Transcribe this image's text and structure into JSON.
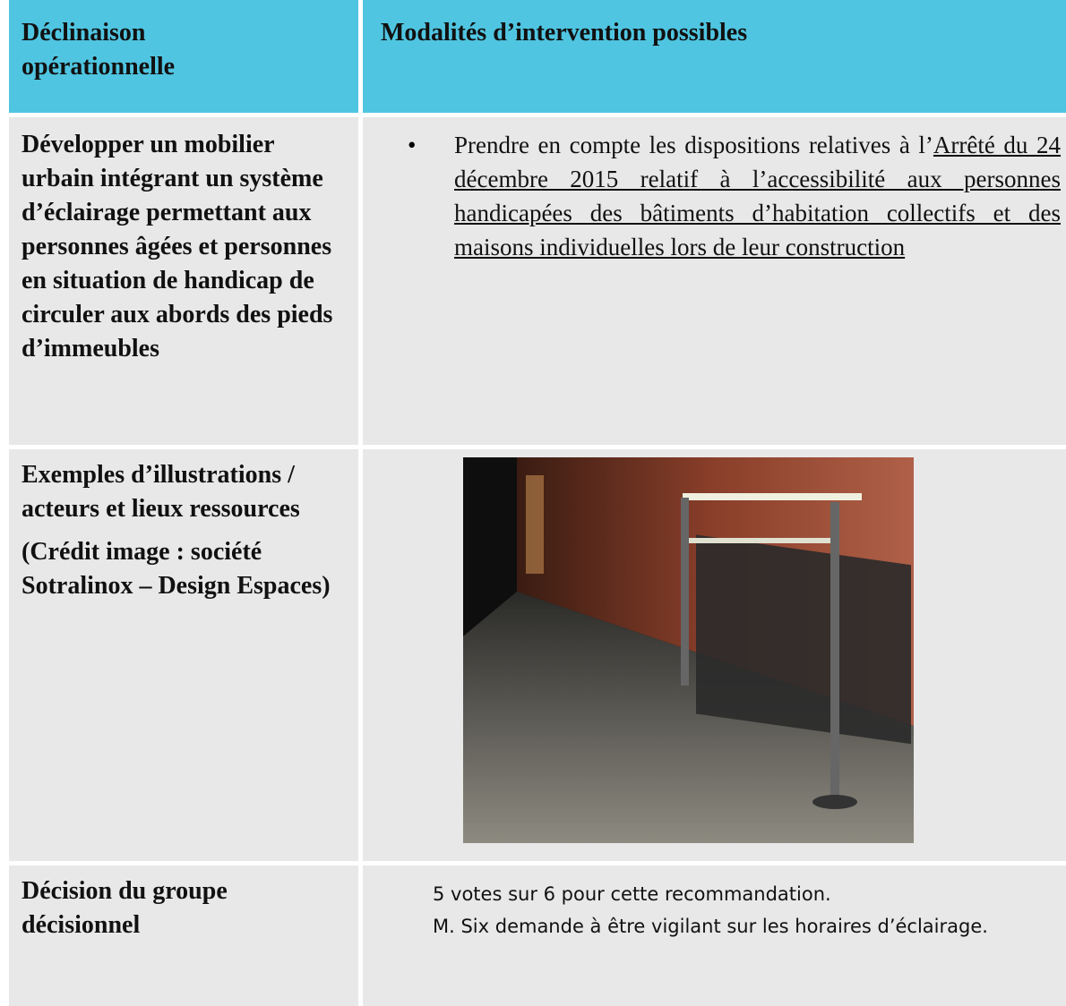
{
  "table": {
    "header": [
      "Déclinaison opérationnelle",
      "Modalités d’intervention possibles"
    ],
    "rows": [
      {
        "label": "Développer un mobilier urbain intégrant un système d’éclairage permettant aux personnes âgées et personnes en situation de handicap de circuler aux abords des pieds d’immeubles",
        "bullet": "•",
        "text": "Prendre en compte les dispositions relatives à l’",
        "link": "Arrêté du 24 décembre 2015 relatif à l’accessibilité aux personnes handicapées des bâtiments d’habitation collectifs et des maisons individuelles lors de leur construction"
      },
      {
        "label": [
          "Exemples d’illustrations / acteurs et lieux ressources",
          "(Crédit image : société Sotralinox – Design Espaces)"
        ]
      },
      {
        "label": "Décision du groupe décisionnel",
        "items": [
          "5 votes sur 6 pour cette recommandation.",
          "M. Six demande à être vigilant sur les horaires d’éclairage."
        ]
      }
    ]
  }
}
